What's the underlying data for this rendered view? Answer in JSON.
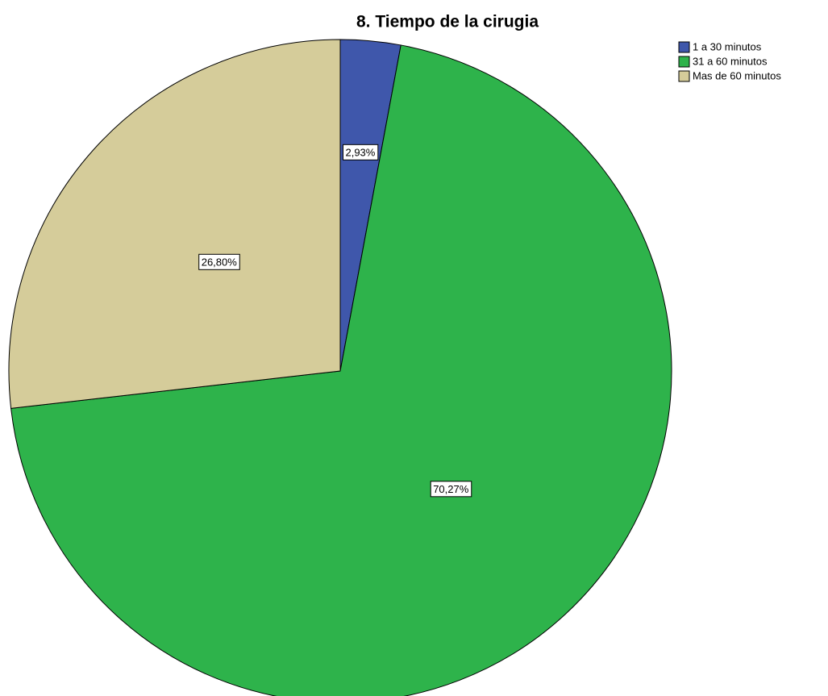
{
  "chart_data": {
    "type": "pie",
    "title": "8. Tiempo de la cirugia",
    "categories": [
      "1 a 30 minutos",
      "31 a 60 minutos",
      "Mas de 60 minutos"
    ],
    "values": [
      2.93,
      70.27,
      26.8
    ],
    "value_labels": [
      "2,93%",
      "70,27%",
      "26,80%"
    ],
    "colors": [
      "#3f57ab",
      "#2eb34b",
      "#d5cc9a"
    ],
    "legend": "top-right"
  }
}
